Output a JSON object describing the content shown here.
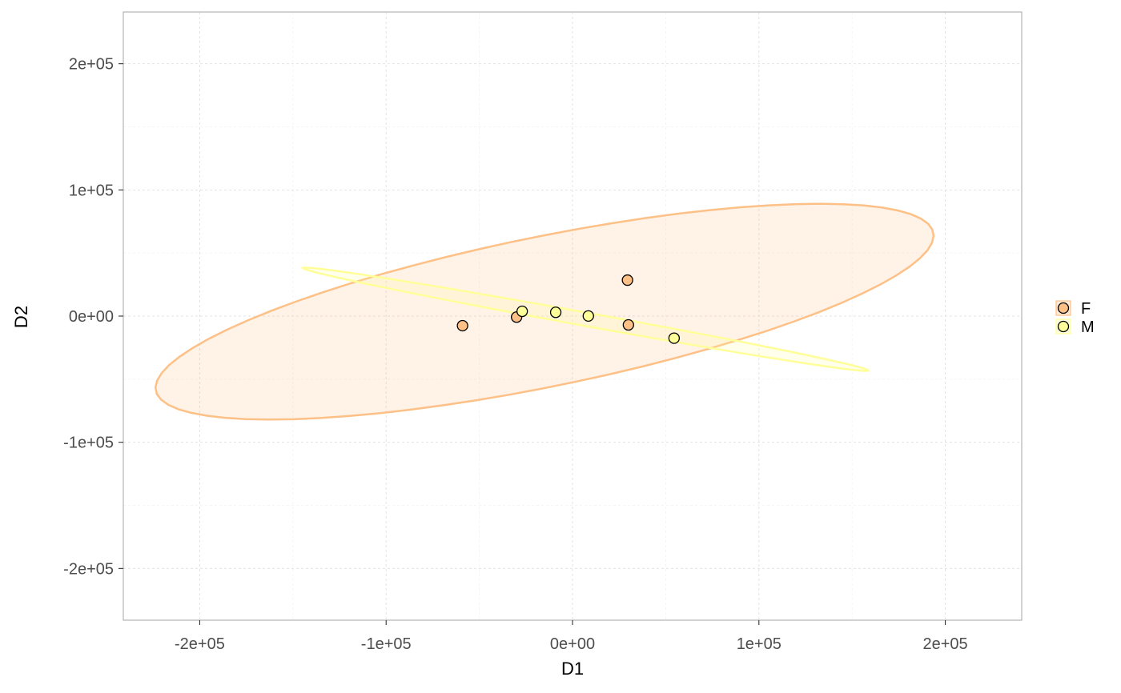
{
  "chart_data": {
    "type": "scatter",
    "xlabel": "D1",
    "ylabel": "D2",
    "xlim": [
      -241000,
      241000
    ],
    "ylim": [
      -241000,
      241000
    ],
    "x_ticks": [
      -200000,
      -100000,
      0,
      100000,
      200000
    ],
    "x_tick_labels": [
      "-2e+05",
      "-1e+05",
      "0e+00",
      "1e+05",
      "2e+05"
    ],
    "y_ticks": [
      -200000,
      -100000,
      0,
      100000,
      200000
    ],
    "y_tick_labels": [
      "-2e+05",
      "-1e+05",
      "0e+00",
      "1e+05",
      "2e+05"
    ],
    "grid": true,
    "legend_position": "right",
    "series": [
      {
        "name": "F",
        "color": "#FDC086",
        "points": [
          [
            -59000,
            -7600
          ],
          [
            -30000,
            -800
          ],
          [
            29500,
            28500
          ],
          [
            30000,
            -7000
          ]
        ],
        "ellipse": {
          "center": [
            -15000,
            3500
          ],
          "rx": 218000,
          "ry": 58000,
          "angle_deg": 17.4
        }
      },
      {
        "name": "M",
        "color": "#FFFF99",
        "points": [
          [
            -27000,
            3800
          ],
          [
            -9000,
            3000
          ],
          [
            8500,
            100
          ],
          [
            54500,
            -17500
          ]
        ],
        "ellipse": {
          "center": [
            7000,
            -2500
          ],
          "rx": 157000,
          "ry": 5200,
          "angle_deg": -15
        }
      }
    ]
  }
}
